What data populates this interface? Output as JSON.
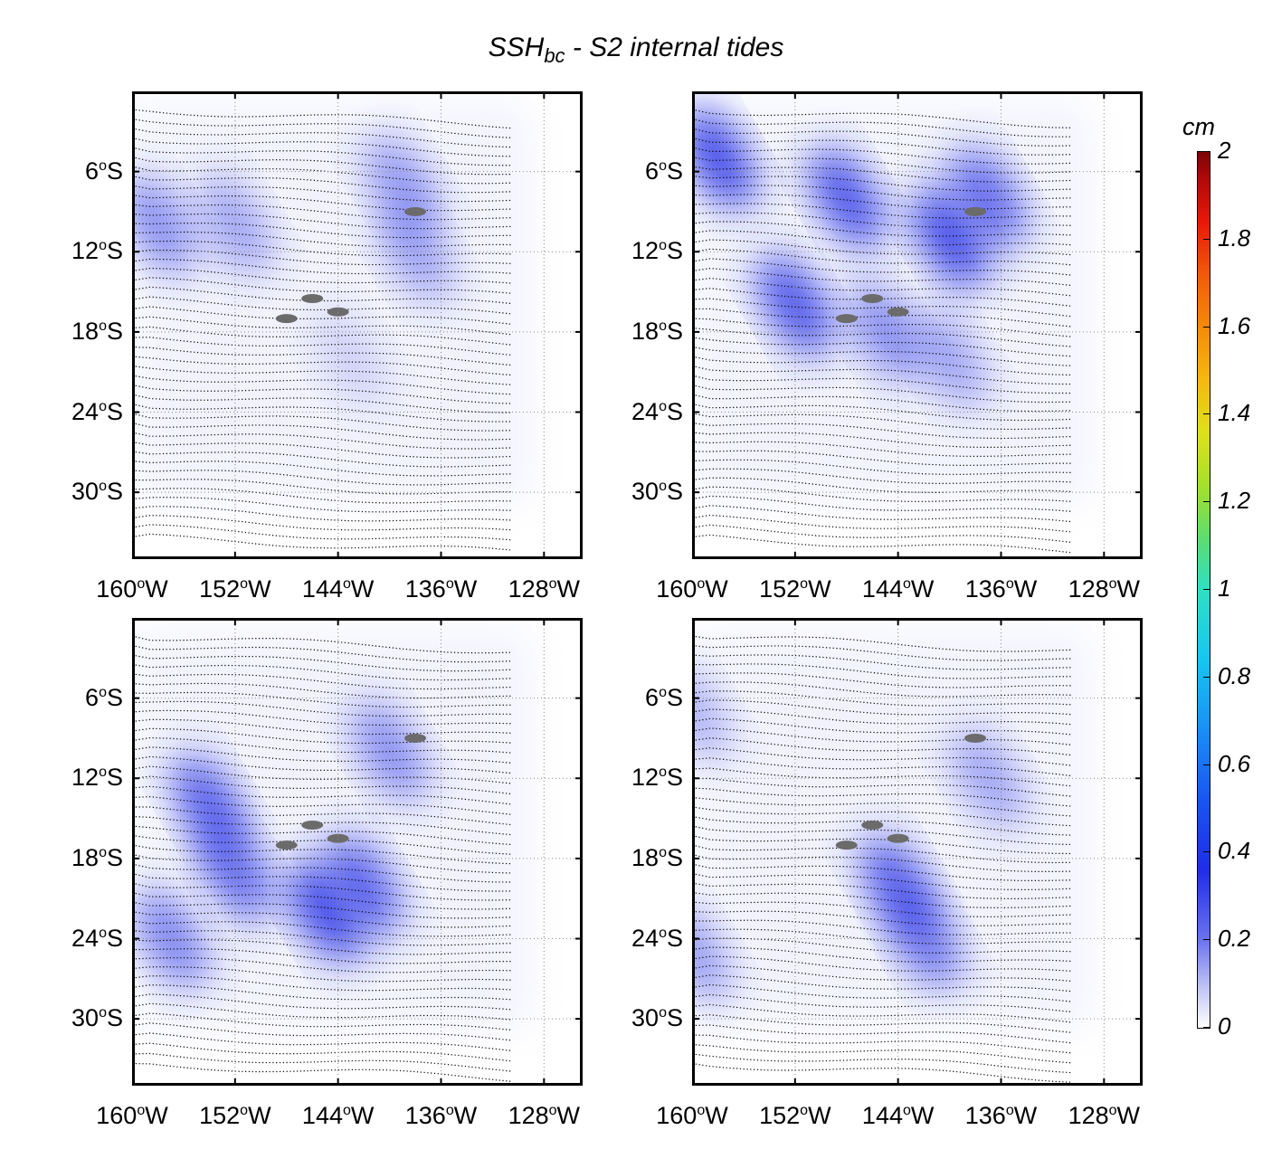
{
  "figure": {
    "title_main": "SSH",
    "title_sub": "bc",
    "title_rest": " - S2 internal tides"
  },
  "axes": {
    "y_ticks": [
      {
        "value": "6",
        "sup": "o",
        "hemi": "S"
      },
      {
        "value": "12",
        "sup": "o",
        "hemi": "S"
      },
      {
        "value": "18",
        "sup": "o",
        "hemi": "S"
      },
      {
        "value": "24",
        "sup": "o",
        "hemi": "S"
      },
      {
        "value": "30",
        "sup": "o",
        "hemi": "S"
      }
    ],
    "x_ticks": [
      {
        "value": "160",
        "sup": "o",
        "hemi": "W"
      },
      {
        "value": "152",
        "sup": "o",
        "hemi": "W"
      },
      {
        "value": "144",
        "sup": "o",
        "hemi": "W"
      },
      {
        "value": "136",
        "sup": "o",
        "hemi": "W"
      },
      {
        "value": "128",
        "sup": "o",
        "hemi": "W"
      }
    ]
  },
  "colorbar": {
    "unit": "cm",
    "ticks": [
      "2",
      "1.8",
      "1.6",
      "1.4",
      "1.2",
      "1",
      "0.8",
      "0.6",
      "0.4",
      "0.2",
      "0"
    ],
    "colors": {
      "low": "#ffffff",
      "mid": "#1f2de8",
      "high": "#7a0505"
    }
  },
  "panels": [
    {
      "id": "top-left",
      "blobs": [
        {
          "lon": -158,
          "lat": -10,
          "amp": 0.18
        },
        {
          "lon": -152,
          "lat": -10,
          "amp": 0.14
        },
        {
          "lon": -139,
          "lat": -7,
          "amp": 0.16
        },
        {
          "lon": -138,
          "lat": -12,
          "amp": 0.14
        },
        {
          "lon": -143,
          "lat": -20,
          "amp": 0.06
        }
      ]
    },
    {
      "id": "top-right",
      "blobs": [
        {
          "lon": -158,
          "lat": -5,
          "amp": 0.3
        },
        {
          "lon": -148,
          "lat": -8,
          "amp": 0.28
        },
        {
          "lon": -140,
          "lat": -11,
          "amp": 0.3
        },
        {
          "lon": -137,
          "lat": -8,
          "amp": 0.25
        },
        {
          "lon": -152,
          "lat": -16,
          "amp": 0.28
        },
        {
          "lon": -145,
          "lat": -18,
          "amp": 0.18
        },
        {
          "lon": -140,
          "lat": -20,
          "amp": 0.14
        }
      ]
    },
    {
      "id": "bottom-left",
      "blobs": [
        {
          "lon": -154,
          "lat": -14,
          "amp": 0.26
        },
        {
          "lon": -152,
          "lat": -19,
          "amp": 0.24
        },
        {
          "lon": -145,
          "lat": -22,
          "amp": 0.3
        },
        {
          "lon": -142,
          "lat": -20,
          "amp": 0.26
        },
        {
          "lon": -140,
          "lat": -10,
          "amp": 0.18
        },
        {
          "lon": -157,
          "lat": -24,
          "amp": 0.2
        }
      ]
    },
    {
      "id": "bottom-right",
      "blobs": [
        {
          "lon": -144,
          "lat": -20,
          "amp": 0.26
        },
        {
          "lon": -142,
          "lat": -24,
          "amp": 0.22
        },
        {
          "lon": -137,
          "lat": -12,
          "amp": 0.14
        },
        {
          "lon": -160,
          "lat": -25,
          "amp": 0.16
        },
        {
          "lon": -160,
          "lat": -7,
          "amp": 0.12
        }
      ]
    }
  ]
}
